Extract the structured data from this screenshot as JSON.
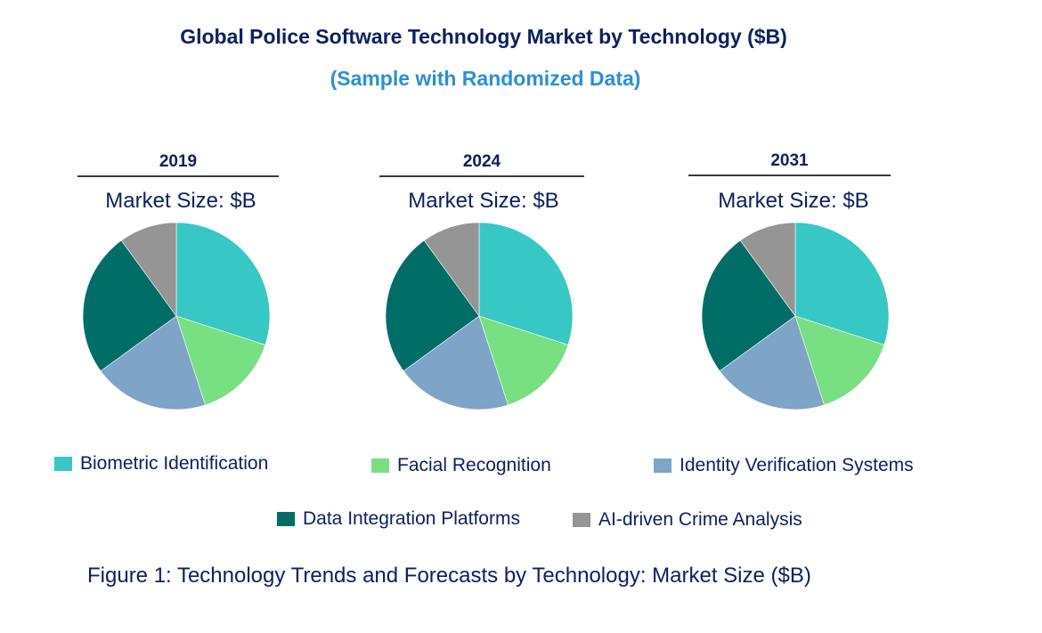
{
  "chart_data": {
    "type": "pie",
    "title": "Global Police Software Technology Market by  Technology ($B)",
    "subtitle": "(Sample with Randomized Data)",
    "caption": "Figure 1: Technology Trends and Forecasts by Technology: Market Size ($B)",
    "categories": [
      "Biometric Identification",
      "Facial Recognition",
      "Identity Verification Systems",
      "Data Integration Platforms",
      "AI-driven Crime Analysis"
    ],
    "colors": [
      "#37c8c5",
      "#79e082",
      "#7ea4c8",
      "#006e67",
      "#959595"
    ],
    "legend_position": "bottom",
    "pies": [
      {
        "year": "2019",
        "label": "Market Size: $B",
        "values": [
          30,
          15,
          20,
          25,
          10
        ]
      },
      {
        "year": "2024",
        "label": "Market Size: $B",
        "values": [
          30,
          15,
          20,
          25,
          10
        ]
      },
      {
        "year": "2031",
        "label": "Market Size: $B",
        "values": [
          30,
          15,
          20,
          25,
          10
        ]
      }
    ],
    "value_unit": "percent share (estimated)"
  }
}
